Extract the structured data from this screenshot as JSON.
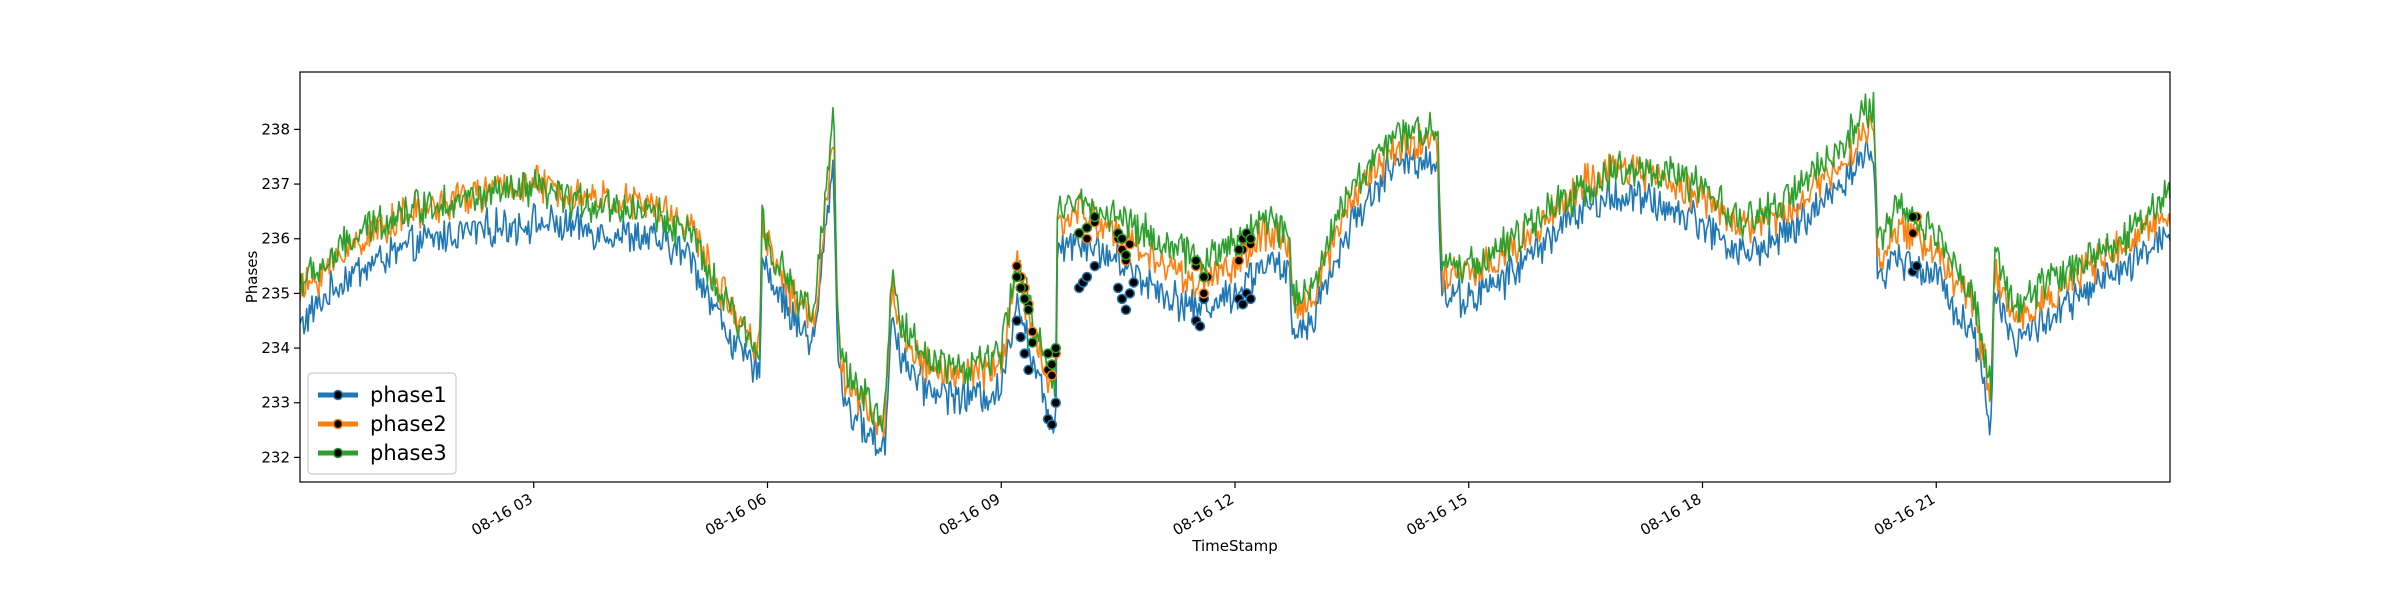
{
  "chart_data": {
    "type": "line",
    "xlabel": "TimeStamp",
    "ylabel": "Phases",
    "xlim_hours": [
      0,
      24
    ],
    "ylim": [
      231.55,
      239.05
    ],
    "x_ticks": [
      {
        "hour": 3,
        "label": "08-16 03"
      },
      {
        "hour": 6,
        "label": "08-16 06"
      },
      {
        "hour": 9,
        "label": "08-16 09"
      },
      {
        "hour": 12,
        "label": "08-16 12"
      },
      {
        "hour": 15,
        "label": "08-16 15"
      },
      {
        "hour": 18,
        "label": "08-16 18"
      },
      {
        "hour": 21,
        "label": "08-16 21"
      }
    ],
    "y_ticks": [
      232,
      233,
      234,
      235,
      236,
      237,
      238
    ],
    "legend_position": "lower-left",
    "marker_color": "#000000",
    "series": [
      {
        "name": "phase1",
        "color": "#1f77b4",
        "x": [
          0.0,
          0.3,
          0.6,
          1.0,
          1.5,
          2.0,
          2.5,
          3.0,
          3.5,
          4.0,
          4.5,
          5.0,
          5.3,
          5.6,
          5.9,
          5.93,
          6.0,
          6.3,
          6.6,
          6.8,
          6.85,
          6.9,
          7.0,
          7.2,
          7.5,
          7.6,
          7.7,
          8.0,
          8.5,
          9.0,
          9.2,
          9.4,
          9.6,
          9.7,
          9.72,
          10.0,
          10.5,
          11.0,
          11.5,
          12.0,
          12.4,
          12.7,
          12.75,
          13.0,
          13.5,
          14.0,
          14.5,
          14.6,
          14.65,
          15.0,
          15.5,
          16.0,
          16.5,
          17.0,
          17.5,
          18.0,
          18.5,
          19.0,
          19.5,
          20.0,
          20.2,
          20.25,
          20.5,
          21.0,
          21.5,
          21.7,
          21.75,
          22.0,
          22.5,
          23.0,
          23.5,
          24.0
        ],
        "y": [
          234.4,
          234.9,
          235.3,
          235.6,
          235.9,
          236.1,
          236.2,
          236.3,
          236.2,
          236.1,
          236.0,
          235.7,
          234.8,
          234.0,
          233.5,
          235.9,
          235.4,
          234.6,
          234.1,
          236.9,
          237.3,
          233.9,
          233.0,
          232.6,
          232.1,
          234.7,
          233.9,
          233.3,
          233.1,
          233.2,
          235.0,
          233.8,
          232.8,
          232.6,
          235.9,
          236.0,
          235.6,
          235.1,
          234.7,
          235.0,
          235.6,
          235.3,
          234.2,
          234.6,
          236.3,
          237.3,
          237.5,
          237.4,
          235.0,
          234.9,
          235.3,
          236.0,
          236.6,
          236.8,
          236.6,
          236.3,
          235.7,
          236.0,
          236.6,
          237.4,
          237.6,
          235.2,
          235.7,
          235.3,
          234.2,
          232.6,
          235.1,
          234.1,
          234.6,
          235.1,
          235.5,
          236.2
        ]
      },
      {
        "name": "phase2",
        "color": "#ff7f0e",
        "x": [
          0.0,
          0.3,
          0.6,
          1.0,
          1.5,
          2.0,
          2.5,
          3.0,
          3.5,
          4.0,
          4.5,
          5.0,
          5.3,
          5.6,
          5.9,
          5.93,
          6.0,
          6.3,
          6.6,
          6.8,
          6.85,
          6.9,
          7.0,
          7.2,
          7.5,
          7.6,
          7.7,
          8.0,
          8.5,
          9.0,
          9.2,
          9.4,
          9.6,
          9.7,
          9.72,
          10.0,
          10.5,
          11.0,
          11.5,
          12.0,
          12.4,
          12.7,
          12.75,
          13.0,
          13.5,
          14.0,
          14.5,
          14.6,
          14.65,
          15.0,
          15.5,
          16.0,
          16.5,
          17.0,
          17.5,
          18.0,
          18.5,
          19.0,
          19.5,
          20.0,
          20.2,
          20.25,
          20.5,
          21.0,
          21.5,
          21.7,
          21.75,
          22.0,
          22.5,
          23.0,
          23.5,
          24.0
        ],
        "y": [
          235.0,
          235.4,
          235.8,
          236.2,
          236.5,
          236.7,
          236.9,
          237.0,
          236.8,
          236.7,
          236.6,
          236.3,
          235.3,
          234.6,
          234.0,
          236.5,
          235.9,
          235.0,
          234.5,
          237.4,
          237.8,
          234.3,
          233.4,
          233.0,
          232.5,
          235.2,
          234.3,
          233.7,
          233.5,
          233.7,
          235.5,
          234.3,
          233.4,
          233.2,
          236.3,
          236.5,
          236.1,
          235.6,
          235.2,
          235.5,
          236.1,
          235.8,
          234.6,
          235.0,
          236.8,
          237.6,
          237.9,
          237.7,
          235.4,
          235.3,
          235.7,
          236.4,
          237.0,
          237.3,
          237.1,
          236.8,
          236.2,
          236.4,
          237.0,
          237.8,
          238.0,
          235.6,
          236.2,
          235.8,
          234.7,
          233.0,
          235.5,
          234.5,
          235.0,
          235.5,
          235.9,
          236.6
        ]
      },
      {
        "name": "phase3",
        "color": "#2ca02c",
        "x": [
          0.0,
          0.3,
          0.6,
          1.0,
          1.5,
          2.0,
          2.5,
          3.0,
          3.5,
          4.0,
          4.5,
          5.0,
          5.3,
          5.6,
          5.9,
          5.93,
          6.0,
          6.3,
          6.6,
          6.8,
          6.85,
          6.9,
          7.0,
          7.2,
          7.5,
          7.6,
          7.7,
          8.0,
          8.5,
          9.0,
          9.2,
          9.4,
          9.6,
          9.7,
          9.72,
          10.0,
          10.5,
          11.0,
          11.5,
          12.0,
          12.4,
          12.7,
          12.75,
          13.0,
          13.5,
          14.0,
          14.5,
          14.6,
          14.65,
          15.0,
          15.5,
          16.0,
          16.5,
          17.0,
          17.5,
          18.0,
          18.5,
          19.0,
          19.5,
          20.0,
          20.2,
          20.25,
          20.5,
          21.0,
          21.5,
          21.7,
          21.75,
          22.0,
          22.5,
          23.0,
          23.5,
          24.0
        ],
        "y": [
          235.2,
          235.5,
          235.9,
          236.3,
          236.6,
          236.7,
          236.8,
          236.9,
          236.7,
          236.6,
          236.5,
          236.1,
          235.2,
          234.5,
          233.9,
          236.5,
          236.0,
          235.1,
          234.6,
          237.6,
          238.3,
          234.5,
          233.6,
          233.2,
          232.6,
          235.4,
          234.5,
          233.9,
          233.6,
          233.9,
          235.6,
          234.6,
          233.7,
          233.4,
          236.5,
          236.7,
          236.4,
          236.0,
          235.6,
          235.9,
          236.4,
          236.1,
          234.9,
          235.2,
          237.0,
          237.8,
          238.1,
          237.9,
          235.6,
          235.5,
          235.9,
          236.5,
          236.9,
          237.3,
          237.2,
          236.9,
          236.3,
          236.6,
          237.3,
          238.1,
          238.5,
          235.9,
          236.6,
          236.1,
          234.9,
          233.2,
          235.8,
          234.7,
          235.3,
          235.7,
          236.1,
          236.9
        ]
      }
    ],
    "anomalies": [
      {
        "series": "phase1",
        "x": [
          9.2,
          9.25,
          9.3,
          9.35,
          9.6,
          9.65,
          9.7,
          10.0,
          10.05,
          10.1,
          10.2,
          10.5,
          10.55,
          10.6,
          10.65,
          10.7,
          11.5,
          11.55,
          11.6,
          11.65,
          12.05,
          12.1,
          12.15,
          12.2,
          20.7,
          20.75
        ],
        "y": [
          234.5,
          234.2,
          233.9,
          233.6,
          232.7,
          232.6,
          233.0,
          235.1,
          235.2,
          235.3,
          235.5,
          235.1,
          234.9,
          234.7,
          235.0,
          235.2,
          234.5,
          234.4,
          234.9,
          235.3,
          234.9,
          234.8,
          235.0,
          234.9,
          235.4,
          235.5
        ]
      },
      {
        "series": "phase2",
        "x": [
          9.2,
          9.25,
          9.3,
          9.35,
          9.4,
          9.6,
          9.65,
          9.7,
          10.0,
          10.1,
          10.2,
          10.5,
          10.55,
          10.6,
          10.65,
          11.5,
          11.6,
          11.65,
          12.05,
          12.1,
          12.15,
          12.2,
          20.7,
          20.75
        ],
        "y": [
          235.5,
          235.3,
          235.1,
          234.8,
          234.3,
          233.6,
          233.5,
          233.9,
          236.1,
          236.0,
          236.3,
          236.0,
          235.8,
          235.6,
          235.9,
          235.5,
          235.0,
          235.3,
          235.6,
          235.8,
          236.0,
          235.9,
          236.1,
          236.4
        ]
      },
      {
        "series": "phase3",
        "x": [
          9.2,
          9.25,
          9.3,
          9.35,
          9.4,
          9.6,
          9.65,
          9.7,
          10.0,
          10.1,
          10.2,
          10.5,
          10.55,
          10.6,
          11.5,
          11.6,
          12.05,
          12.1,
          12.15,
          12.2,
          20.7
        ],
        "y": [
          235.3,
          235.1,
          234.9,
          234.7,
          234.1,
          233.9,
          233.7,
          234.0,
          236.1,
          236.2,
          236.4,
          236.1,
          236.0,
          235.7,
          235.6,
          235.3,
          235.8,
          236.0,
          236.1,
          236.0,
          236.4
        ]
      }
    ]
  }
}
